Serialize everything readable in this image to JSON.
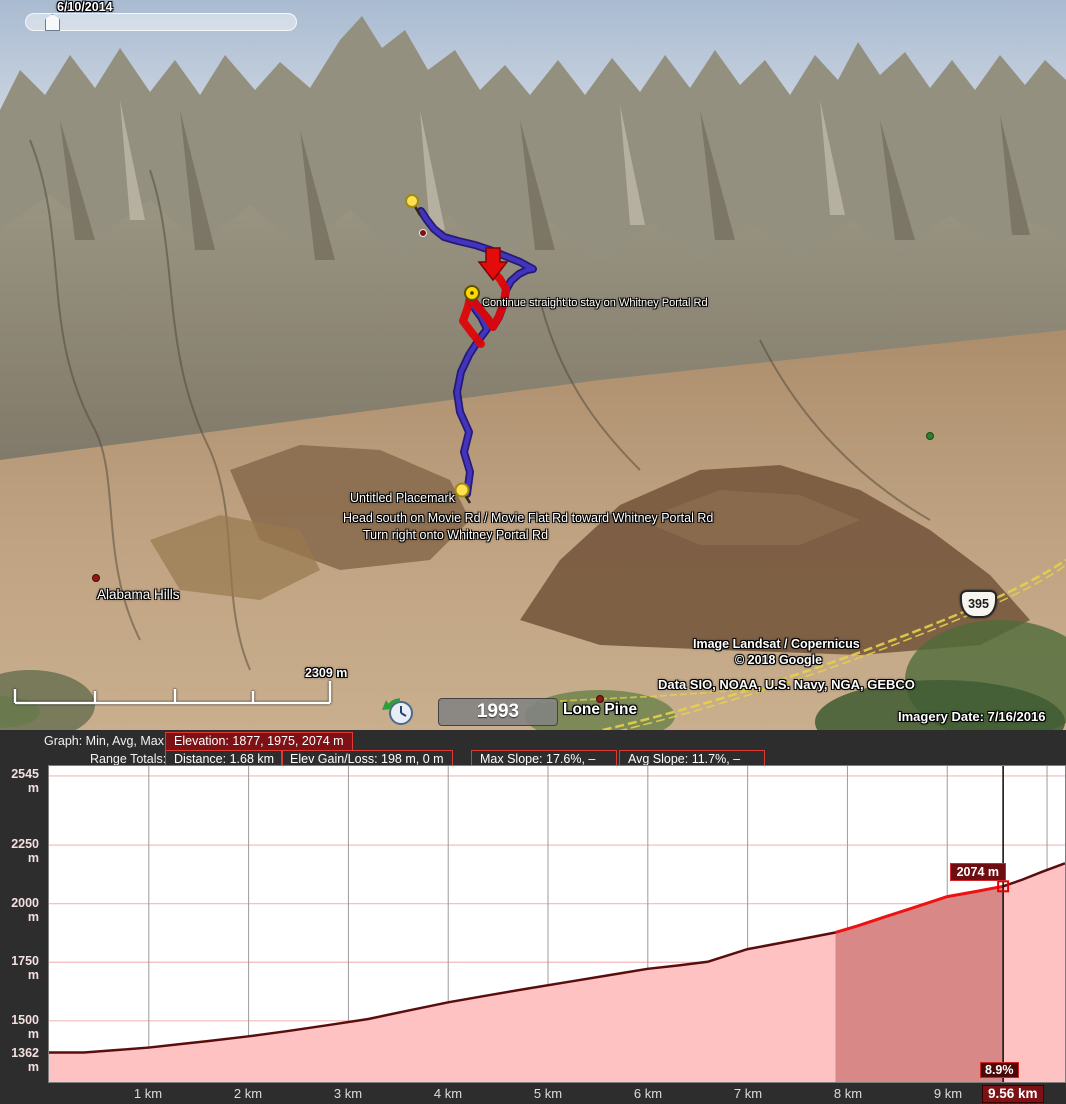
{
  "timeline": {
    "date": "6/10/2014"
  },
  "map": {
    "labels": {
      "route_instruction": "Continue straight to stay on Whitney Portal Rd",
      "placemark": "Untitled Placemark",
      "direction1": "Head south on Movie Rd / Movie Flat Rd toward Whitney Portal Rd",
      "direction2": "Turn right onto Whitney Portal Rd",
      "region": "Alabama Hills",
      "town": "Lone Pine",
      "highway_shield": "395"
    },
    "credits": {
      "landsat": "Image Landsat / Copernicus",
      "google": "© 2018 Google",
      "data_sources": "Data SIO, NOAA, U.S. Navy, NGA, GEBCO",
      "imagery_date": "Imagery Date: 7/16/2016"
    },
    "scale_bar_label": "2309 m",
    "historical_imagery_year": "1993"
  },
  "profile": {
    "graph_label": "Graph: Min, Avg, Max",
    "elevation_summary": "Elevation: 1877, 1975, 2074 m",
    "range_totals_label": "Range Totals:",
    "distance": "Distance: 1.68 km",
    "elev_gain_loss": "Elev Gain/Loss: 198 m, 0 m",
    "max_slope": "Max Slope: 17.6%, –",
    "avg_slope": "Avg Slope: 11.7%, –",
    "cursor": {
      "elevation_label": "2074 m",
      "slope_label": "8.9%",
      "distance_label": "9.56 km"
    }
  },
  "chart_data": {
    "type": "area",
    "title": "",
    "xlabel": "",
    "ylabel": "",
    "x_unit": "km",
    "y_unit": "m",
    "xlim": [
      0,
      10.18
    ],
    "ylim": [
      1362,
      2545
    ],
    "grid": true,
    "x_ticks": [
      "1 km",
      "2 km",
      "3 km",
      "4 km",
      "5 km",
      "6 km",
      "7 km",
      "8 km",
      "9 km"
    ],
    "x_tick_values": [
      1,
      2,
      3,
      4,
      5,
      6,
      7,
      8,
      9
    ],
    "y_ticks": [
      "2545 m",
      "2250 m",
      "2000 m",
      "1750 m",
      "1500 m",
      "1362 m"
    ],
    "y_tick_values": [
      2545,
      2250,
      2000,
      1750,
      1500,
      1362
    ],
    "y_grid_values": [
      2545,
      2250,
      2000,
      1750,
      1500
    ],
    "profile": [
      [
        0,
        1365
      ],
      [
        0.35,
        1365
      ],
      [
        0.7,
        1376
      ],
      [
        1,
        1386
      ],
      [
        1.3,
        1400
      ],
      [
        1.6,
        1414
      ],
      [
        2,
        1434
      ],
      [
        2.4,
        1457
      ],
      [
        2.8,
        1482
      ],
      [
        3.2,
        1508
      ],
      [
        3.6,
        1544
      ],
      [
        4,
        1579
      ],
      [
        4.4,
        1609
      ],
      [
        4.8,
        1638
      ],
      [
        5.2,
        1666
      ],
      [
        5.6,
        1694
      ],
      [
        6,
        1722
      ],
      [
        6.3,
        1736
      ],
      [
        6.6,
        1752
      ],
      [
        7,
        1806
      ],
      [
        7.3,
        1830
      ],
      [
        7.6,
        1854
      ],
      [
        7.88,
        1877
      ],
      [
        8.1,
        1905
      ],
      [
        8.4,
        1947
      ],
      [
        8.7,
        1988
      ],
      [
        9,
        2030
      ],
      [
        9.3,
        2053
      ],
      [
        9.56,
        2074
      ],
      [
        9.75,
        2102
      ],
      [
        9.95,
        2136
      ],
      [
        10.18,
        2172
      ]
    ],
    "selection": {
      "start_km": 7.88,
      "end_km": 9.56,
      "distance_km": 1.68,
      "elevation_min": 1877,
      "elevation_avg": 1975,
      "elevation_max": 2074,
      "gain_m": 198,
      "loss_m": 0,
      "max_slope_pct": 17.6,
      "avg_slope_pct": 11.7
    },
    "cursor": {
      "km": 9.56,
      "elevation": 2074,
      "slope_pct": 8.9
    },
    "colors": {
      "fill": "#ffc2c2",
      "selection_fill": "#d98888",
      "line": "#5a0d0d",
      "selection_line": "#ee1111",
      "grid_h": "#f2baba",
      "grid_v": "#9b9b9b",
      "cursor": "#151515",
      "marker": "#e80000"
    }
  }
}
